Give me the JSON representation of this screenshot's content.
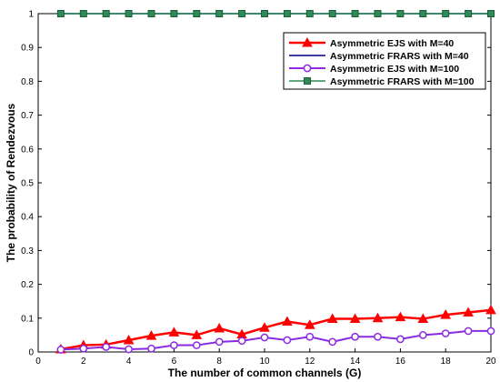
{
  "chart_data": {
    "type": "line",
    "xlabel": "The number of common channels (G)",
    "ylabel": "The probability of Rendezvous",
    "xlim": [
      0,
      20
    ],
    "ylim": [
      0,
      1
    ],
    "xticks": [
      0,
      2,
      4,
      6,
      8,
      10,
      12,
      14,
      16,
      18,
      20
    ],
    "yticks": [
      0,
      0.1,
      0.2,
      0.3,
      0.4,
      0.5,
      0.6,
      0.7,
      0.8,
      0.9,
      1
    ],
    "grid": false,
    "legend_position": "top-right",
    "x": [
      1,
      2,
      3,
      4,
      5,
      6,
      7,
      8,
      9,
      10,
      11,
      12,
      13,
      14,
      15,
      16,
      17,
      18,
      19,
      20
    ],
    "series": [
      {
        "name": "Asymmetric EJS with M=40",
        "color": "#ff0000",
        "marker": "triangle",
        "values": [
          0.008,
          0.02,
          0.022,
          0.035,
          0.048,
          0.058,
          0.05,
          0.07,
          0.052,
          0.072,
          0.09,
          0.08,
          0.098,
          0.098,
          0.1,
          0.103,
          0.098,
          0.11,
          0.117,
          0.124
        ]
      },
      {
        "name": "Asymmetric FRARS with M=40",
        "color": "#000080",
        "marker": "none",
        "values": [
          1,
          1,
          1,
          1,
          1,
          1,
          1,
          1,
          1,
          1,
          1,
          1,
          1,
          1,
          1,
          1,
          1,
          1,
          1,
          1
        ]
      },
      {
        "name": "Asymmetric EJS with M=100",
        "color": "#8a2be2",
        "marker": "circle",
        "values": [
          0.007,
          0.01,
          0.015,
          0.008,
          0.01,
          0.02,
          0.02,
          0.03,
          0.033,
          0.043,
          0.035,
          0.045,
          0.03,
          0.045,
          0.045,
          0.038,
          0.05,
          0.055,
          0.062,
          0.062
        ]
      },
      {
        "name": "Asymmetric FRARS with M=100",
        "color": "#2e8b57",
        "marker": "square",
        "values": [
          1,
          1,
          1,
          1,
          1,
          1,
          1,
          1,
          1,
          1,
          1,
          1,
          1,
          1,
          1,
          1,
          1,
          1,
          1,
          1
        ]
      }
    ]
  }
}
